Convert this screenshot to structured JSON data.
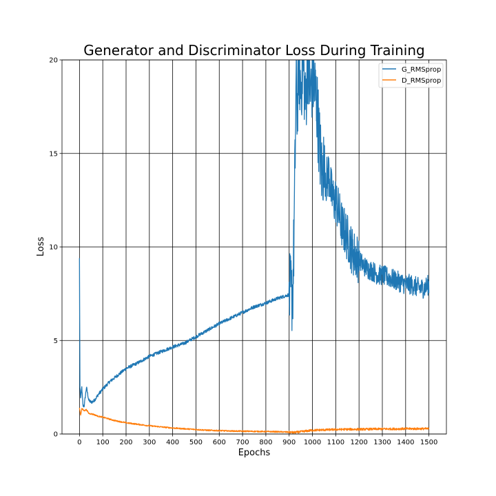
{
  "chart_data": {
    "type": "line",
    "title": "Generator and Discriminator Loss During Training",
    "xlabel": "Epochs",
    "ylabel": "Loss",
    "xlim": [
      -75,
      1575
    ],
    "ylim": [
      0,
      20
    ],
    "xticks": [
      0,
      100,
      200,
      300,
      400,
      500,
      600,
      700,
      800,
      900,
      1000,
      1100,
      1200,
      1300,
      1400,
      1500
    ],
    "yticks": [
      0,
      5,
      10,
      15,
      20
    ],
    "grid": true,
    "legend_position": "top-right",
    "series": [
      {
        "name": "G_RMSprop",
        "color": "#1f77b4",
        "points": [
          [
            0,
            9.4
          ],
          [
            2,
            2.5
          ],
          [
            5,
            1.9
          ],
          [
            10,
            2.5
          ],
          [
            15,
            1.5
          ],
          [
            20,
            1.5
          ],
          [
            25,
            2.0
          ],
          [
            30,
            2.5
          ],
          [
            40,
            1.8
          ],
          [
            50,
            1.7
          ],
          [
            60,
            1.75
          ],
          [
            70,
            1.9
          ],
          [
            80,
            2.1
          ],
          [
            100,
            2.4
          ],
          [
            130,
            2.8
          ],
          [
            160,
            3.1
          ],
          [
            200,
            3.5
          ],
          [
            250,
            3.8
          ],
          [
            300,
            4.15
          ],
          [
            350,
            4.4
          ],
          [
            400,
            4.65
          ],
          [
            450,
            4.85
          ],
          [
            500,
            5.2
          ],
          [
            550,
            5.55
          ],
          [
            600,
            5.9
          ],
          [
            650,
            6.2
          ],
          [
            700,
            6.5
          ],
          [
            750,
            6.8
          ],
          [
            800,
            7.0
          ],
          [
            850,
            7.25
          ],
          [
            900,
            7.45
          ],
          [
            915,
            7.5
          ],
          [
            920,
            10.0
          ],
          [
            925,
            14.0
          ],
          [
            930,
            19.0
          ],
          [
            935,
            17.0
          ],
          [
            940,
            20.0
          ],
          [
            950,
            18.5
          ],
          [
            960,
            20.0
          ],
          [
            970,
            17.5
          ],
          [
            980,
            20.0
          ],
          [
            990,
            18.0
          ],
          [
            1000,
            19.0
          ],
          [
            1010,
            18.5
          ],
          [
            1020,
            17.5
          ],
          [
            1030,
            15.5
          ],
          [
            1040,
            14.0
          ],
          [
            1050,
            14.5
          ],
          [
            1060,
            13.5
          ],
          [
            1070,
            14.0
          ],
          [
            1080,
            13.0
          ],
          [
            1090,
            12.5
          ],
          [
            1100,
            12.5
          ],
          [
            1110,
            12.0
          ],
          [
            1120,
            11.5
          ],
          [
            1130,
            11.0
          ],
          [
            1140,
            10.8
          ],
          [
            1150,
            10.5
          ],
          [
            1160,
            10.2
          ],
          [
            1170,
            9.8
          ],
          [
            1180,
            9.6
          ],
          [
            1190,
            9.5
          ],
          [
            1200,
            9.3
          ],
          [
            1220,
            9.0
          ],
          [
            1240,
            8.8
          ],
          [
            1260,
            8.7
          ],
          [
            1280,
            8.5
          ],
          [
            1300,
            8.5
          ],
          [
            1320,
            8.4
          ],
          [
            1340,
            8.3
          ],
          [
            1360,
            8.2
          ],
          [
            1380,
            8.1
          ],
          [
            1400,
            8.0
          ],
          [
            1420,
            8.0
          ],
          [
            1440,
            7.9
          ],
          [
            1460,
            7.8
          ],
          [
            1480,
            7.8
          ],
          [
            1500,
            8.0
          ]
        ]
      },
      {
        "name": "D_RMSprop",
        "color": "#ff7f0e",
        "points": [
          [
            0,
            1.4
          ],
          [
            5,
            1.0
          ],
          [
            10,
            1.35
          ],
          [
            20,
            1.25
          ],
          [
            30,
            1.3
          ],
          [
            40,
            1.1
          ],
          [
            60,
            1.05
          ],
          [
            80,
            0.95
          ],
          [
            100,
            0.9
          ],
          [
            150,
            0.72
          ],
          [
            200,
            0.6
          ],
          [
            250,
            0.52
          ],
          [
            300,
            0.44
          ],
          [
            350,
            0.38
          ],
          [
            400,
            0.32
          ],
          [
            450,
            0.28
          ],
          [
            500,
            0.24
          ],
          [
            550,
            0.2
          ],
          [
            600,
            0.18
          ],
          [
            650,
            0.16
          ],
          [
            700,
            0.15
          ],
          [
            750,
            0.14
          ],
          [
            800,
            0.13
          ],
          [
            850,
            0.12
          ],
          [
            900,
            0.1
          ],
          [
            920,
            0.08
          ],
          [
            950,
            0.12
          ],
          [
            1000,
            0.2
          ],
          [
            1050,
            0.22
          ],
          [
            1100,
            0.24
          ],
          [
            1150,
            0.25
          ],
          [
            1200,
            0.25
          ],
          [
            1250,
            0.26
          ],
          [
            1300,
            0.27
          ],
          [
            1350,
            0.27
          ],
          [
            1400,
            0.28
          ],
          [
            1450,
            0.28
          ],
          [
            1500,
            0.28
          ]
        ]
      }
    ]
  }
}
